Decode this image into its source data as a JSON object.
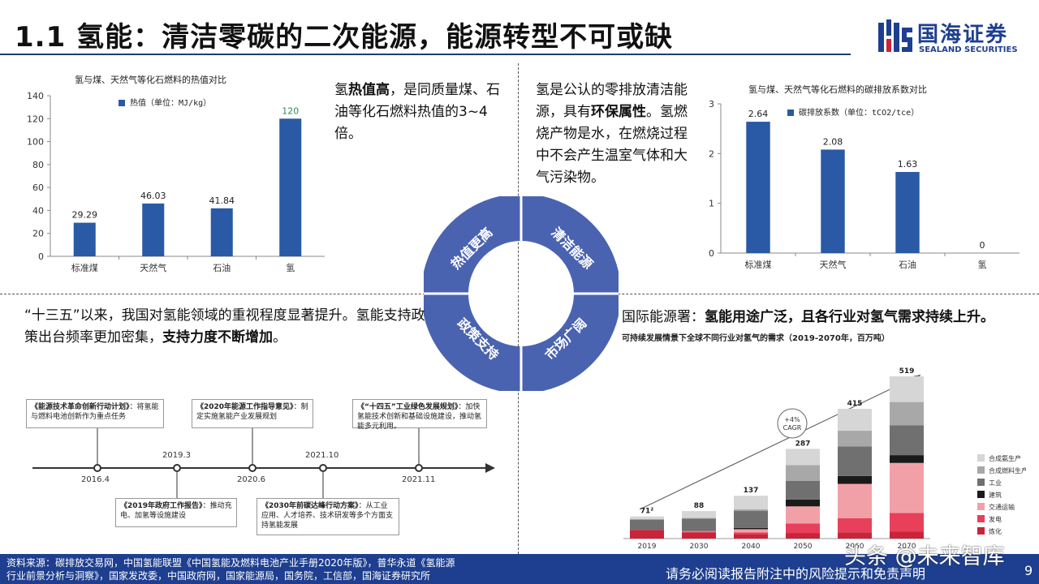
{
  "header": {
    "title": "1.1 氢能：清洁零碳的二次能源，能源转型不可或缺",
    "logo_cn": "国海证券",
    "logo_en": "SEALAND SECURITIES",
    "accent": "#1e3f8f"
  },
  "top_left": {
    "text_parts": [
      "氢",
      "热值高",
      "，是同质量煤、石油等化石燃料热值的3~4倍。"
    ]
  },
  "top_right": {
    "text_parts": [
      "氢是公认的零排放清洁能源，具有",
      "环保属性",
      "。氢燃烧产物是水，在燃烧过程中不会产生温室气体和大气污染物。"
    ]
  },
  "bottom_left": {
    "text_parts": [
      "“十三五”以来，我国对氢能领域的重视程度显著提升。氢能支持政策出台频率更加密集，",
      "支持力度不断增加",
      "。"
    ]
  },
  "bottom_right": {
    "text_parts": [
      "国际能源署：",
      "氢能用途广泛，且各行业对氢气需求持续上升。"
    ]
  },
  "ring": {
    "segments": [
      "热值更高",
      "清洁能源",
      "政策支持",
      "市场广阔"
    ],
    "color": "#4a63b0"
  },
  "timeline": {
    "dates": [
      "2016.4",
      "2019.3",
      "2020.6",
      "2021.10",
      "2021.11"
    ],
    "events_top": [
      {
        "title": "《能源技术革命创新行动计划》",
        "body": "：将氢能与燃料电池创新作为重点任务"
      },
      {
        "title": "《2020年能源工作指导意见》",
        "body": "：制定实施氢能产业发展规划"
      },
      {
        "title": "《“十四五”工业绿色发展规划》",
        "body": "：加快氢能技术创新和基础设施建设，推动氢能多元利用。"
      }
    ],
    "events_bottom": [
      {
        "title": "《2019年政府工作报告》",
        "body": "：推动充电、加氢等设施建设"
      },
      {
        "title": "《2030年前碳达峰行动方案》",
        "body": "：从工业应用、人才培养、技术研发等多个方面支持氢能发展"
      }
    ]
  },
  "footer": {
    "source": "资料来源：碳排放交易网，中国氢能联盟《中国氢能及燃料电池产业手册2020年版》，普华永道《氢能源行业前景分析与洞察》，国家发改委，中国政府网，国家能源局，国务院，工信部，国海证券研究所",
    "disclaimer": "请务必阅读报告附注中的风险提示和免责声明",
    "page": "9",
    "watermark": "头条 @未来智库"
  },
  "chart_data": [
    {
      "type": "bar",
      "title": "氢与煤、天然气等化石燃料的热值对比",
      "legend": [
        "热值（单位：MJ/kg）"
      ],
      "categories": [
        "标准煤",
        "天然气",
        "石油",
        "氢"
      ],
      "values": [
        29.29,
        46.03,
        41.84,
        120
      ],
      "labels": [
        "29.29",
        "46.03",
        "41.84",
        "120"
      ],
      "ylim": [
        0,
        140
      ],
      "yticks": [
        "0",
        "20",
        "40",
        "60",
        "80",
        "100",
        "120",
        "140"
      ],
      "color": "#2a5aa5",
      "grid": false
    },
    {
      "type": "bar",
      "title": "氢与煤、天然气等化石燃料的碳排放系数对比",
      "legend": [
        "碳排放系数（单位：tCO2/tce）"
      ],
      "categories": [
        "标准煤",
        "天然气",
        "石油",
        "氢"
      ],
      "values": [
        2.64,
        2.08,
        1.63,
        0
      ],
      "labels": [
        "2.64",
        "2.08",
        "1.63",
        "0"
      ],
      "ylim": [
        0,
        3
      ],
      "yticks": [
        "0",
        "1",
        "2",
        "3"
      ],
      "color": "#2a5aa5",
      "grid": false
    },
    {
      "type": "bar",
      "stacked": true,
      "title": "可持续发展情景下全球不同行业对氢气的需求（2019-2070年，百万吨）",
      "categories": [
        "2019",
        "2030",
        "2040",
        "2050",
        "2060",
        "2070"
      ],
      "totals": [
        71,
        88,
        137,
        287,
        415,
        519
      ],
      "total_labels": [
        "71²",
        "88",
        "137",
        "287",
        "415",
        "519"
      ],
      "annotation": "+4% CAGR",
      "series": [
        {
          "name": "炼化",
          "color": "#c8243a",
          "values": [
            28,
            20,
            15,
            18,
            20,
            22
          ]
        },
        {
          "name": "发电",
          "color": "#e8405a",
          "values": [
            0,
            2,
            5,
            30,
            45,
            60
          ]
        },
        {
          "name": "交通运输",
          "color": "#f2a0a8",
          "values": [
            0,
            3,
            10,
            55,
            110,
            160
          ]
        },
        {
          "name": "建筑",
          "color": "#1a1a1a",
          "values": [
            0,
            1,
            4,
            22,
            25,
            25
          ]
        },
        {
          "name": "工业",
          "color": "#707070",
          "values": [
            33,
            38,
            55,
            60,
            95,
            95
          ]
        },
        {
          "name": "合成燃料生产",
          "color": "#a8a8a8",
          "values": [
            0,
            2,
            5,
            50,
            50,
            75
          ]
        },
        {
          "name": "合成氨生产",
          "color": "#d6d6d6",
          "values": [
            10,
            22,
            43,
            52,
            70,
            82
          ]
        }
      ]
    }
  ]
}
